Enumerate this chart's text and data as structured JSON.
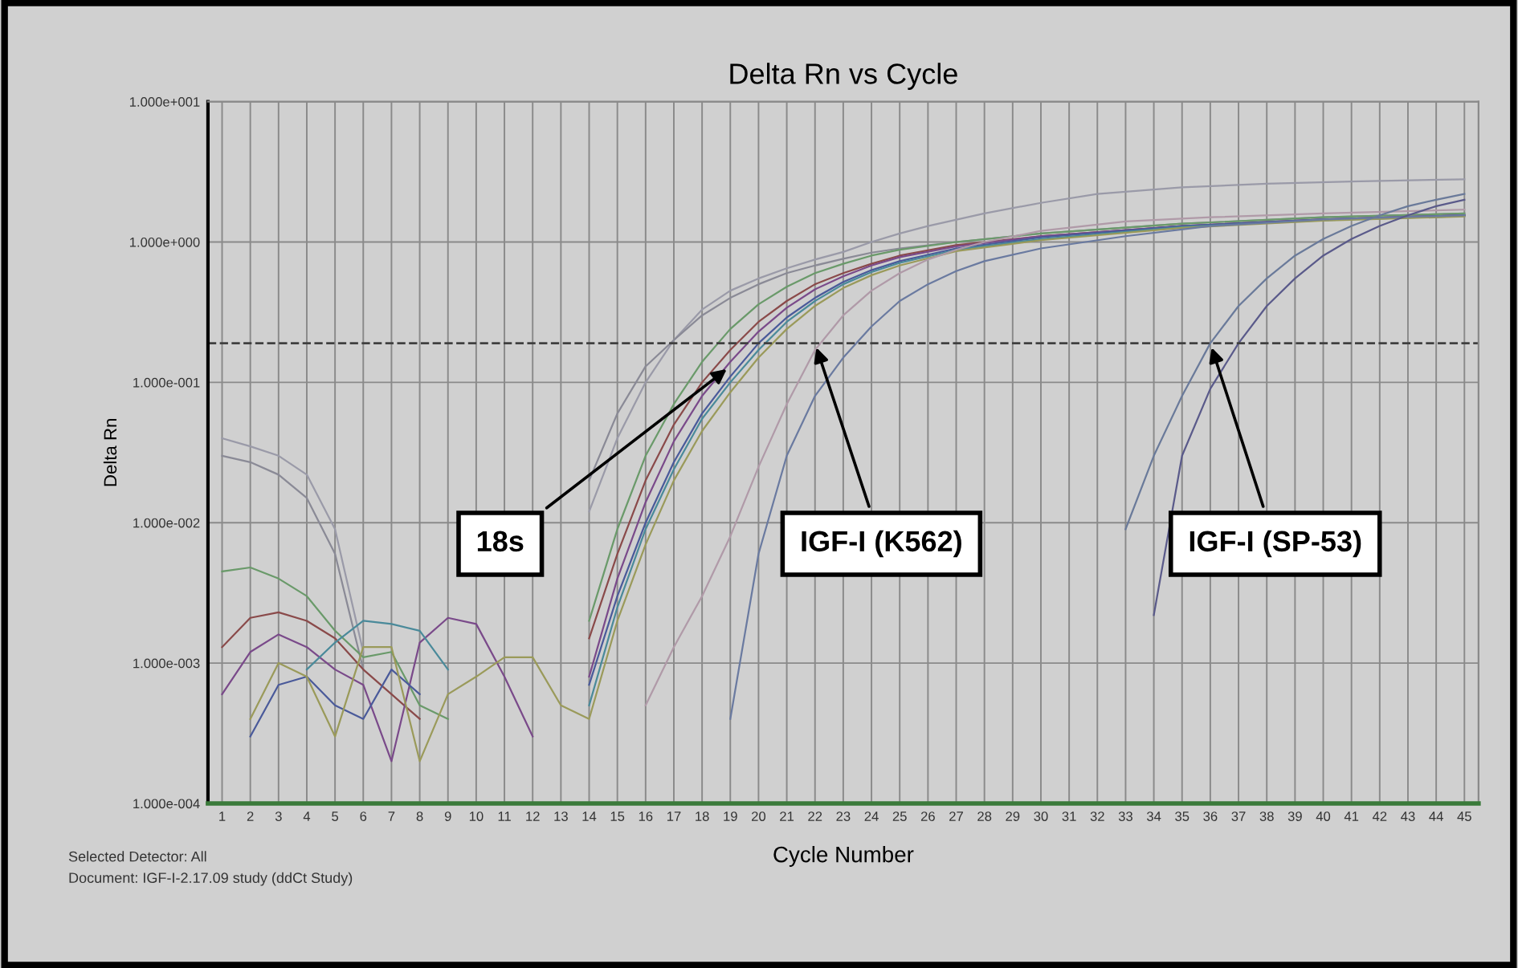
{
  "chart_data": {
    "type": "line",
    "title": "Delta Rn vs Cycle",
    "xlabel": "Cycle Number",
    "ylabel": "Delta Rn",
    "log": "y",
    "grid": true,
    "marker": "none",
    "line_style": "solid",
    "xlim": [
      0.5,
      45.5
    ],
    "xticks": [
      1,
      2,
      3,
      4,
      5,
      6,
      7,
      8,
      9,
      10,
      11,
      12,
      13,
      14,
      15,
      16,
      17,
      18,
      19,
      20,
      21,
      22,
      23,
      24,
      25,
      26,
      27,
      28,
      29,
      30,
      31,
      32,
      33,
      34,
      35,
      36,
      37,
      38,
      39,
      40,
      41,
      42,
      43,
      44,
      45
    ],
    "ylim": [
      0.0001,
      10
    ],
    "yticks": [
      {
        "value": 0.0001,
        "label": "1.000e-004"
      },
      {
        "value": 0.001,
        "label": "1.000e-003"
      },
      {
        "value": 0.01,
        "label": "1.000e-002"
      },
      {
        "value": 0.1,
        "label": "1.000e-001"
      },
      {
        "value": 1,
        "label": "1.000e+000"
      },
      {
        "value": 10,
        "label": "1.000e+001"
      }
    ],
    "ref_lines": [
      {
        "axis": "y",
        "value": 0.19,
        "color": "#404040",
        "line_style": "dashed"
      }
    ],
    "series": [
      {
        "color": "#9a9aa8",
        "x": [
          1,
          2,
          3,
          4,
          5,
          6,
          7,
          14,
          15,
          16,
          17,
          18,
          19,
          20,
          21,
          22,
          23,
          24,
          25,
          26,
          28,
          30,
          32,
          35,
          38,
          41,
          45
        ],
        "values": [
          0.04,
          0.035,
          0.03,
          0.022,
          0.009,
          0.0012,
          null,
          0.012,
          0.04,
          0.1,
          0.2,
          0.33,
          0.45,
          0.55,
          0.65,
          0.75,
          0.85,
          1.0,
          1.15,
          1.3,
          1.6,
          1.9,
          2.2,
          2.45,
          2.6,
          2.7,
          2.8
        ]
      },
      {
        "color": "#8a8a96",
        "x": [
          1,
          2,
          3,
          4,
          5,
          6,
          7,
          14,
          15,
          16,
          17,
          18,
          19,
          20,
          21,
          22,
          23,
          24,
          25,
          27,
          30,
          35,
          40,
          45
        ],
        "values": [
          0.03,
          0.027,
          0.022,
          0.015,
          0.006,
          0.0009,
          null,
          0.02,
          0.06,
          0.13,
          0.2,
          0.3,
          0.4,
          0.5,
          0.6,
          0.68,
          0.76,
          0.84,
          0.9,
          1.0,
          1.15,
          1.35,
          1.5,
          1.6
        ]
      },
      {
        "color": "#6a9a6a",
        "x": [
          1,
          2,
          3,
          4,
          5,
          6,
          7,
          8,
          9,
          10,
          14,
          15,
          16,
          17,
          18,
          19,
          20,
          21,
          22,
          23,
          24,
          25,
          27,
          30,
          35,
          40,
          45
        ],
        "values": [
          0.0045,
          0.0048,
          0.004,
          0.003,
          0.0017,
          0.0011,
          0.0012,
          0.0005,
          0.0004,
          null,
          0.002,
          0.009,
          0.03,
          0.07,
          0.14,
          0.24,
          0.36,
          0.48,
          0.6,
          0.7,
          0.8,
          0.88,
          1.0,
          1.15,
          1.35,
          1.5,
          1.6
        ]
      },
      {
        "color": "#8a4a4a",
        "x": [
          1,
          2,
          3,
          4,
          5,
          6,
          7,
          8,
          9,
          14,
          15,
          16,
          17,
          18,
          19,
          20,
          21,
          22,
          23,
          24,
          25,
          27,
          30,
          35,
          40,
          45
        ],
        "values": [
          0.0013,
          0.0021,
          0.0023,
          0.002,
          0.0015,
          0.0009,
          0.0006,
          0.0004,
          null,
          0.0015,
          0.006,
          0.02,
          0.05,
          0.1,
          0.17,
          0.27,
          0.38,
          0.5,
          0.6,
          0.7,
          0.8,
          0.95,
          1.1,
          1.3,
          1.45,
          1.55
        ]
      },
      {
        "color": "#7a4a8a",
        "x": [
          1,
          2,
          3,
          4,
          5,
          6,
          7,
          8,
          9,
          10,
          11,
          12,
          13,
          14,
          15,
          16,
          17,
          18,
          19,
          20,
          21,
          22,
          23,
          24,
          25,
          27,
          30,
          35,
          40,
          45
        ],
        "values": [
          0.0006,
          0.0012,
          0.0016,
          0.0013,
          0.0009,
          0.0007,
          0.0002,
          0.0014,
          0.0021,
          0.0019,
          0.0008,
          0.0003,
          null,
          0.0008,
          0.004,
          0.014,
          0.038,
          0.08,
          0.14,
          0.23,
          0.34,
          0.46,
          0.57,
          0.68,
          0.78,
          0.93,
          1.1,
          1.3,
          1.45,
          1.55
        ]
      },
      {
        "color": "#4a5a9a",
        "x": [
          2,
          3,
          4,
          5,
          6,
          7,
          8,
          9,
          14,
          15,
          16,
          17,
          18,
          19,
          20,
          21,
          22,
          23,
          24,
          25,
          27,
          30,
          35,
          40,
          45
        ],
        "values": [
          0.0003,
          0.0007,
          0.0008,
          0.0005,
          0.0004,
          0.0009,
          0.0006,
          null,
          0.0007,
          0.003,
          0.01,
          0.027,
          0.06,
          0.11,
          0.19,
          0.29,
          0.4,
          0.52,
          0.63,
          0.73,
          0.9,
          1.08,
          1.3,
          1.45,
          1.55
        ]
      },
      {
        "color": "#4a8a9a",
        "x": [
          4,
          5,
          6,
          7,
          8,
          9,
          10,
          14,
          15,
          16,
          17,
          18,
          19,
          20,
          21,
          22,
          23,
          24,
          25,
          27,
          30,
          35,
          40,
          45
        ],
        "values": [
          0.0009,
          0.0014,
          0.002,
          0.0019,
          0.0017,
          0.0009,
          null,
          0.0005,
          0.0025,
          0.009,
          0.024,
          0.055,
          0.1,
          0.17,
          0.27,
          0.38,
          0.5,
          0.61,
          0.71,
          0.88,
          1.05,
          1.28,
          1.43,
          1.53
        ]
      },
      {
        "color": "#9a9a5a",
        "x": [
          2,
          3,
          4,
          5,
          6,
          7,
          8,
          9,
          10,
          11,
          12,
          13,
          14,
          15,
          16,
          17,
          18,
          19,
          20,
          21,
          22,
          23,
          24,
          25,
          27,
          30,
          35,
          40,
          45
        ],
        "values": [
          0.0004,
          0.001,
          0.0008,
          0.0003,
          0.0013,
          0.0013,
          0.0002,
          0.0006,
          0.0008,
          0.0011,
          0.0011,
          0.0005,
          0.0004,
          0.002,
          0.007,
          0.02,
          0.045,
          0.085,
          0.15,
          0.24,
          0.35,
          0.47,
          0.58,
          0.68,
          0.86,
          1.03,
          1.26,
          1.42,
          1.52
        ]
      },
      {
        "color": "#b09aa8",
        "x": [
          16,
          17,
          18,
          19,
          20,
          21,
          22,
          23,
          24,
          25,
          26,
          27,
          28,
          30,
          33,
          36,
          40,
          45
        ],
        "values": [
          0.0005,
          0.0013,
          0.003,
          0.008,
          0.025,
          0.07,
          0.17,
          0.3,
          0.45,
          0.6,
          0.75,
          0.88,
          1.0,
          1.2,
          1.4,
          1.5,
          1.6,
          1.7
        ]
      },
      {
        "color": "#6a7aa0",
        "x": [
          19,
          20,
          21,
          22,
          23,
          24,
          25,
          26,
          27,
          28,
          30,
          33,
          36,
          40,
          45
        ],
        "values": [
          0.0004,
          0.006,
          0.03,
          0.08,
          0.15,
          0.25,
          0.38,
          0.5,
          0.62,
          0.73,
          0.9,
          1.1,
          1.3,
          1.45,
          1.55
        ]
      },
      {
        "color": "#6a7a9a",
        "x": [
          33,
          34,
          35,
          36,
          37,
          38,
          39,
          40,
          41,
          42,
          43,
          44,
          45
        ],
        "values": [
          0.009,
          0.03,
          0.08,
          0.19,
          0.35,
          0.55,
          0.8,
          1.05,
          1.3,
          1.55,
          1.8,
          2.0,
          2.2
        ]
      },
      {
        "color": "#5a5a8a",
        "x": [
          34,
          35,
          36,
          37,
          38,
          39,
          40,
          41,
          42,
          43,
          44,
          45
        ],
        "values": [
          0.0022,
          0.03,
          0.09,
          0.19,
          0.35,
          0.55,
          0.8,
          1.05,
          1.3,
          1.55,
          1.8,
          2.0
        ]
      }
    ],
    "annotations": [
      {
        "text": "18s",
        "x": 19,
        "y": 0.13
      },
      {
        "text": "IGF-I (K562)",
        "x": 22,
        "y": 0.19
      },
      {
        "text": "IGF-I (SP-53)",
        "x": 36,
        "y": 0.19
      },
      "Selected Detector: All",
      "Document: IGF-I-2.17.09 study (ddCt Study)"
    ]
  }
}
